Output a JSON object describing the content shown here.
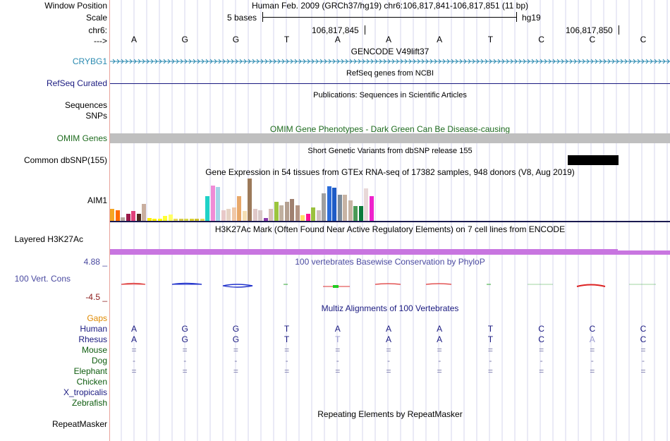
{
  "labels": {
    "window_position": "Window Position",
    "scale": "Scale",
    "chr": "chr6:",
    "arrow": "--->",
    "crybg1": "CRYBG1",
    "refseq_curated": "RefSeq Curated",
    "sequences": "Sequences",
    "snps": "SNPs",
    "omim_genes": "OMIM Genes",
    "common_dbsnp": "Common dbSNP(155)",
    "aim1": "AIM1",
    "layered_h3k27ac": "Layered H3K27Ac",
    "phylop_max": "4.88 _",
    "vert_cons": "100 Vert. Cons",
    "phylop_min": "-4.5 _",
    "gaps": "Gaps",
    "human": "Human",
    "rhesus": "Rhesus",
    "mouse": "Mouse",
    "dog": "Dog",
    "elephant": "Elephant",
    "chicken": "Chicken",
    "x_tropicalis": "X_tropicalis",
    "zebrafish": "Zebrafish",
    "repeatmasker": "RepeatMasker"
  },
  "header": {
    "assembly": "Human Feb. 2009 (GRCh37/hg19)   chr6:106,817,841-106,817,851 (11 bp)",
    "scale_text": "5 bases",
    "scale_db": "hg19",
    "pos1": "106,817,845",
    "pos2": "106,817,850"
  },
  "bases": [
    "A",
    "G",
    "G",
    "T",
    "A",
    "A",
    "A",
    "T",
    "C",
    "C",
    "C"
  ],
  "tracks": {
    "gencode": "GENCODE V49lift37",
    "refseq": "RefSeq genes from NCBI",
    "publications": "Publications: Sequences in Scientific Articles",
    "omim_title": "OMIM Gene Phenotypes - Dark Green Can Be Disease-causing",
    "dbsnp_title": "Short Genetic Variants from dbSNP release 155",
    "gtex_title": "Gene Expression in 54 tissues from GTEx RNA-seq of 17382 samples, 948 donors (V8, Aug 2019)",
    "h3k27ac_title": "H3K27Ac Mark (Often Found Near Active Regulatory Elements) on 7 cell lines from ENCODE",
    "phylop_title": "100 vertebrates Basewise Conservation by PhyloP",
    "multiz_title": "Multiz Alignments of 100 Vertebrates",
    "repeat_title": "Repeating Elements by RepeatMasker"
  },
  "alignment": {
    "human": [
      "A",
      "G",
      "G",
      "T",
      "A",
      "A",
      "A",
      "T",
      "C",
      "C",
      "C"
    ],
    "rhesus": [
      "A",
      "G",
      "G",
      "T",
      "T",
      "A",
      "A",
      "T",
      "C",
      "A",
      "C"
    ],
    "mouse": [
      "=",
      "=",
      "=",
      "=",
      "=",
      "=",
      "=",
      "=",
      "=",
      "=",
      "="
    ],
    "dog": [
      "-",
      "-",
      "-",
      "-",
      "-",
      "-",
      "-",
      "-",
      "-",
      "-",
      "-"
    ],
    "elephant": [
      "=",
      "=",
      "=",
      "=",
      "=",
      "=",
      "=",
      "=",
      "=",
      "=",
      "="
    ]
  },
  "gtex": {
    "values": [
      18,
      15,
      5,
      10,
      14,
      10,
      25,
      4,
      3,
      3,
      7,
      9,
      3,
      3,
      3,
      3,
      3,
      3,
      36,
      52,
      50,
      15,
      18,
      20,
      36,
      14,
      62,
      18,
      15,
      4,
      18,
      28,
      23,
      28,
      32,
      23,
      8,
      10,
      20,
      15,
      40,
      51,
      49,
      38,
      38,
      30,
      22,
      22,
      48,
      36
    ],
    "colors": [
      "#f5a623",
      "#ff6a00",
      "#b5a89e",
      "#9b1b4b",
      "#e0407a",
      "#4d2a1f",
      "#c9ae9f",
      "#ffee00",
      "#ffee00",
      "#ffff00",
      "#ffff33",
      "#ffff66",
      "#e5d65c",
      "#d4c84a",
      "#d6d64e",
      "#d9ce2f",
      "#ccc033",
      "#e2d85a",
      "#1fd2c7",
      "#f08bd6",
      "#a4d4e8",
      "#e8c8c8",
      "#e6d2c4",
      "#f0c8a8",
      "#e8a86a",
      "#f5deb3",
      "#9c7a5a",
      "#e0c8c8",
      "#d8c8c8",
      "#8b3aaa",
      "#d8c0b8",
      "#9bc53d",
      "#c0b0a0",
      "#b4a090",
      "#a08070",
      "#b49484",
      "#ffe066",
      "#ff1493",
      "#9ac13f",
      "#d0c0c0",
      "#a0a0a0",
      "#2b6cd9",
      "#1e5bc6",
      "#7b8a9a",
      "#c8b4a4",
      "#c8b4a4",
      "#4a9a56",
      "#0a7a3a",
      "#e8d8d8",
      "#ee22cc"
    ]
  },
  "colors": {
    "crybg1": "#2a8ab0",
    "navy": "#1a1a80",
    "omim_green": "#1e6b1e",
    "gaps_orange": "#e08a00",
    "red_label": "#8b1a1a",
    "phylop_title": "#4a4aa0",
    "species_green": "#0e5c0e",
    "h3k27ac": "#c875e0"
  }
}
